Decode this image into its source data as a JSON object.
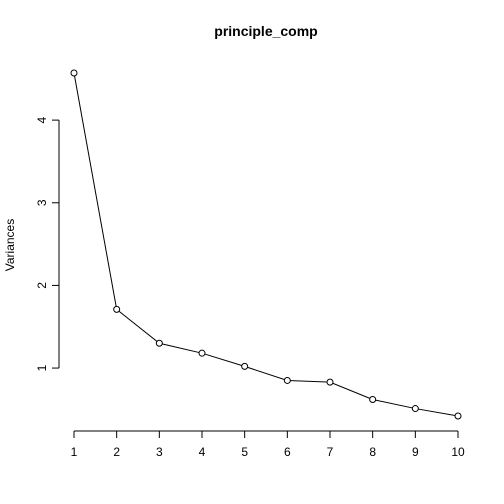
{
  "chart_data": {
    "type": "line",
    "title": "principle_comp",
    "xlabel": "",
    "ylabel": "Variances",
    "x": [
      1,
      2,
      3,
      4,
      5,
      6,
      7,
      8,
      9,
      10
    ],
    "series": [
      {
        "values": [
          4.57,
          1.71,
          1.3,
          1.18,
          1.02,
          0.85,
          0.83,
          0.62,
          0.51,
          0.42
        ]
      }
    ],
    "x_ticks": [
      1,
      2,
      3,
      4,
      5,
      6,
      7,
      8,
      9,
      10
    ],
    "y_ticks": [
      1,
      2,
      3,
      4
    ],
    "xlim": [
      1,
      10
    ],
    "ylim": [
      0.42,
      4.57
    ],
    "grid": false,
    "legend": "none",
    "marker": "open-circle",
    "line_color": "#000000"
  }
}
